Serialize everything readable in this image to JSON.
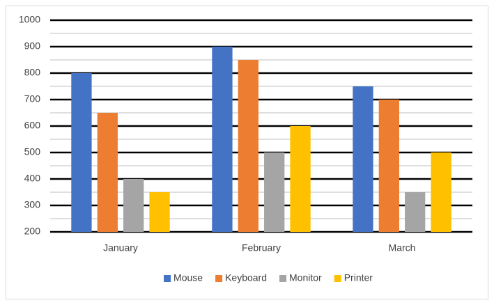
{
  "chart_data": {
    "type": "bar",
    "categories": [
      "January",
      "February",
      "March"
    ],
    "series": [
      {
        "name": "Mouse",
        "color": "#4472c4",
        "values": [
          800,
          900,
          750
        ]
      },
      {
        "name": "Keyboard",
        "color": "#ed7d31",
        "values": [
          650,
          850,
          700
        ]
      },
      {
        "name": "Monitor",
        "color": "#a5a5a5",
        "values": [
          400,
          500,
          350
        ]
      },
      {
        "name": "Printer",
        "color": "#ffc000",
        "values": [
          350,
          600,
          500
        ]
      }
    ],
    "ylim": [
      200,
      1000
    ],
    "yticks": [
      200,
      300,
      400,
      500,
      600,
      700,
      800,
      900,
      1000
    ],
    "grid": true,
    "minor_grid": true,
    "legend": "bottom"
  }
}
